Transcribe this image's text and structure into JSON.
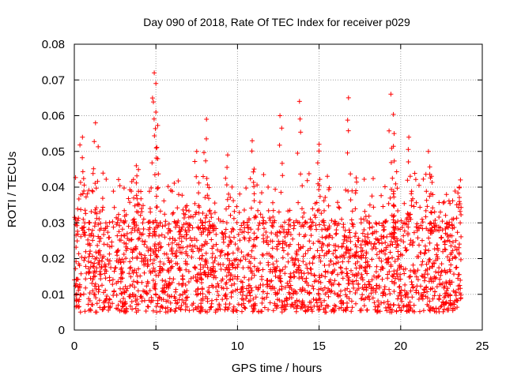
{
  "chart_data": {
    "type": "scatter",
    "title": "Day 090 of 2018, Rate Of TEC Index for receiver p029",
    "xlabel": "GPS time / hours",
    "ylabel": "ROTI / TECUs",
    "xlim": [
      0,
      25
    ],
    "ylim": [
      0,
      0.08
    ],
    "x_ticks": [
      0,
      5,
      10,
      15,
      20,
      25
    ],
    "x_tick_labels": [
      "0",
      "5",
      "10",
      "15",
      "20",
      "25"
    ],
    "y_ticks": [
      0,
      0.01,
      0.02,
      0.03,
      0.04,
      0.05,
      0.06,
      0.07,
      0.08
    ],
    "y_tick_labels": [
      "0",
      "0.01",
      "0.02",
      "0.03",
      "0.04",
      "0.05",
      "0.06",
      "0.07",
      "0.08"
    ],
    "grid": true,
    "marker": "plus",
    "color": "#ff0000",
    "series": [
      {
        "name": "ROTI",
        "x_range_hours": [
          0.0,
          23.7
        ],
        "y_typical": [
          0.005,
          0.03
        ],
        "y_overall": [
          0.002,
          0.072
        ],
        "peaks": [
          {
            "x": 0.5,
            "y": 0.054
          },
          {
            "x": 1.3,
            "y": 0.058
          },
          {
            "x": 3.8,
            "y": 0.046
          },
          {
            "x": 4.9,
            "y": 0.072
          },
          {
            "x": 5.0,
            "y": 0.069
          },
          {
            "x": 5.0,
            "y": 0.061
          },
          {
            "x": 7.5,
            "y": 0.05
          },
          {
            "x": 8.1,
            "y": 0.059
          },
          {
            "x": 9.4,
            "y": 0.049
          },
          {
            "x": 10.9,
            "y": 0.053
          },
          {
            "x": 12.6,
            "y": 0.06
          },
          {
            "x": 13.8,
            "y": 0.064
          },
          {
            "x": 15.0,
            "y": 0.052
          },
          {
            "x": 16.8,
            "y": 0.065
          },
          {
            "x": 19.4,
            "y": 0.066
          },
          {
            "x": 19.6,
            "y": 0.055
          },
          {
            "x": 20.5,
            "y": 0.054
          },
          {
            "x": 21.7,
            "y": 0.05
          },
          {
            "x": 23.6,
            "y": 0.04
          }
        ]
      }
    ]
  }
}
